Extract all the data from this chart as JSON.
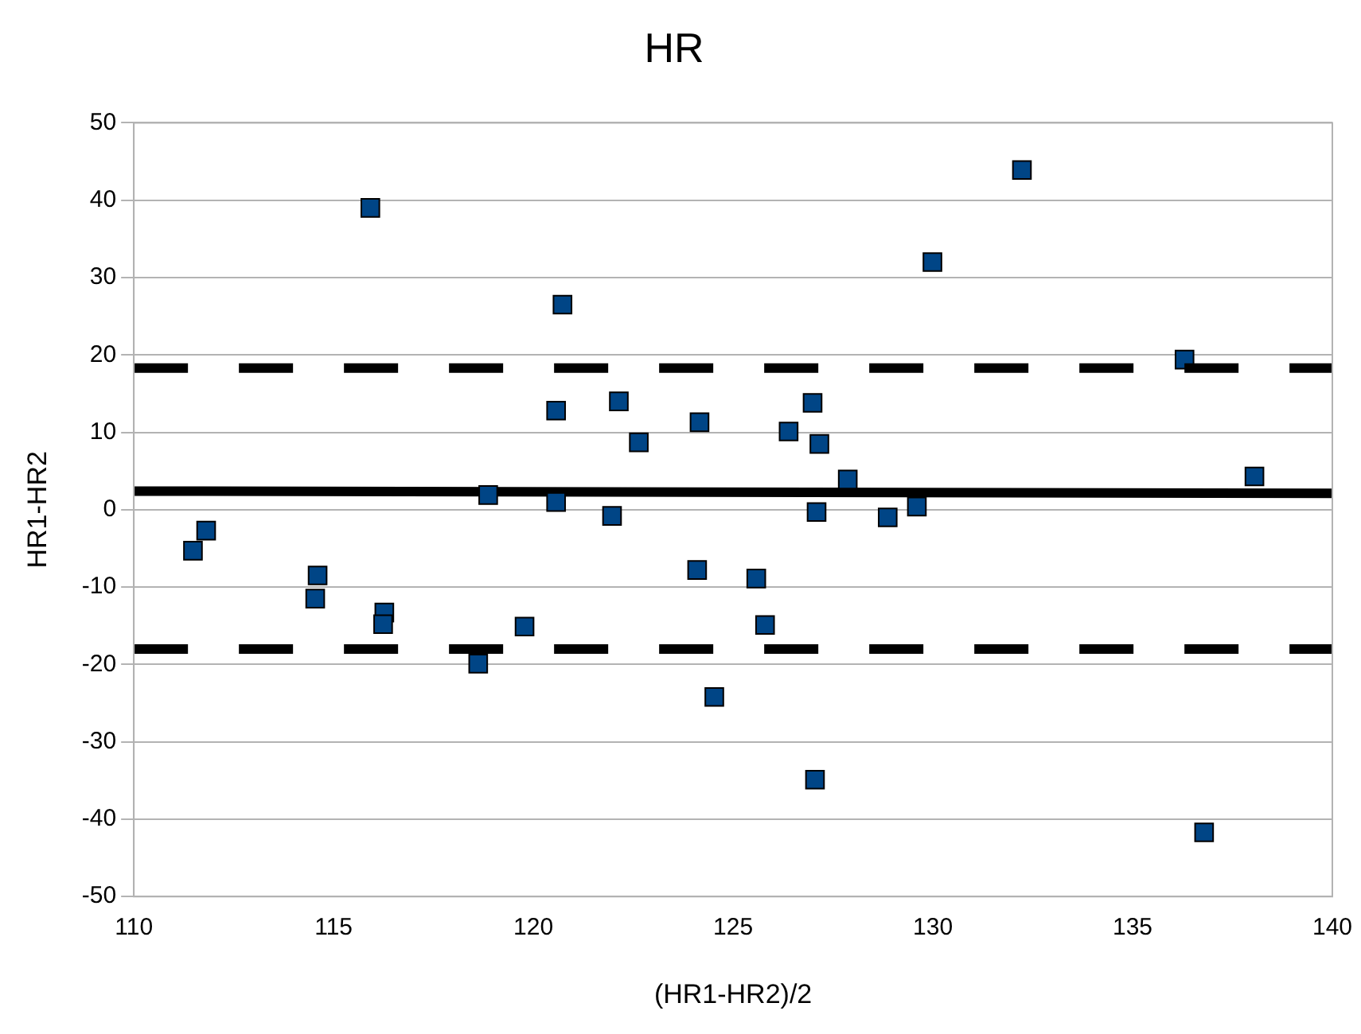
{
  "chart_data": {
    "type": "scatter",
    "title": "HR",
    "xlabel": "(HR1-HR2)/2",
    "ylabel": "HR1-HR2",
    "xlim": [
      110,
      140
    ],
    "xticks": [
      110,
      115,
      120,
      125,
      130,
      135,
      140
    ],
    "ylim": [
      -50,
      50
    ],
    "yticks": [
      -50,
      -40,
      -30,
      -20,
      -10,
      0,
      10,
      20,
      30,
      40,
      50
    ],
    "grid": "y",
    "legend": false,
    "marker": "square",
    "series": [
      {
        "type": "scatter",
        "color": "#004586",
        "x": [
          111.48,
          111.81,
          114.54,
          114.6,
          116.27,
          116.24,
          118.87,
          120.57,
          121.97,
          124.1,
          124.53,
          118.62,
          119.78,
          115.92,
          120.73,
          120.57,
          122.14,
          122.64,
          124.16,
          132.23,
          129.99,
          136.3,
          126.99,
          126.39,
          127.16,
          127.87,
          138.05,
          127.09,
          128.87,
          129.6,
          125.58,
          125.8,
          127.05,
          136.79
        ],
        "values": [
          -5.3,
          -2.7,
          -11.5,
          -8.5,
          -13.3,
          -14.8,
          1.9,
          1.0,
          -0.8,
          -7.8,
          -24.2,
          -19.9,
          -15.1,
          39.0,
          26.5,
          12.8,
          14.0,
          8.7,
          11.3,
          43.9,
          32.0,
          19.4,
          13.8,
          10.1,
          8.5,
          3.9,
          4.3,
          -0.3,
          -1.0,
          0.4,
          -8.9,
          -14.9,
          -34.9,
          -41.7
        ]
      },
      {
        "type": "line",
        "color": "#000000",
        "x": [
          110,
          140
        ],
        "values": [
          2.4,
          2.1
        ],
        "marker": "none",
        "line_style": "solid"
      }
    ],
    "ref_lines": [
      {
        "axis": "y",
        "value": 18.3,
        "color": "#000000",
        "line_style": "dashed"
      },
      {
        "axis": "y",
        "value": -18.0,
        "color": "#000000",
        "line_style": "dashed"
      }
    ]
  }
}
